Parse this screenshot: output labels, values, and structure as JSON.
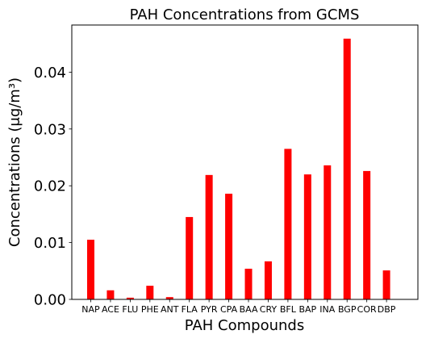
{
  "chart_data": {
    "type": "bar",
    "title": "PAH Concentrations from GCMS",
    "xlabel": "PAH Compounds",
    "ylabel": "Concentrations (μg/m³)",
    "ylim": [
      0,
      0.0483
    ],
    "yticks": [
      0.0,
      0.01,
      0.02,
      0.03,
      0.04
    ],
    "ytick_labels": [
      "0.00",
      "0.01",
      "0.02",
      "0.03",
      "0.04"
    ],
    "grid": false,
    "bar_color": "#ff0000",
    "categories": [
      "NAP",
      "ACE",
      "FLU",
      "PHE",
      "ANT",
      "FLA",
      "PYR",
      "CPA",
      "BAA",
      "CRY",
      "BFL",
      "BAP",
      "INA",
      "BGP",
      "COR",
      "DBP"
    ],
    "values": [
      0.0105,
      0.0016,
      0.0003,
      0.0024,
      0.0004,
      0.0145,
      0.0219,
      0.0186,
      0.0054,
      0.0067,
      0.0265,
      0.022,
      0.0236,
      0.0459,
      0.0226,
      0.0051
    ]
  }
}
